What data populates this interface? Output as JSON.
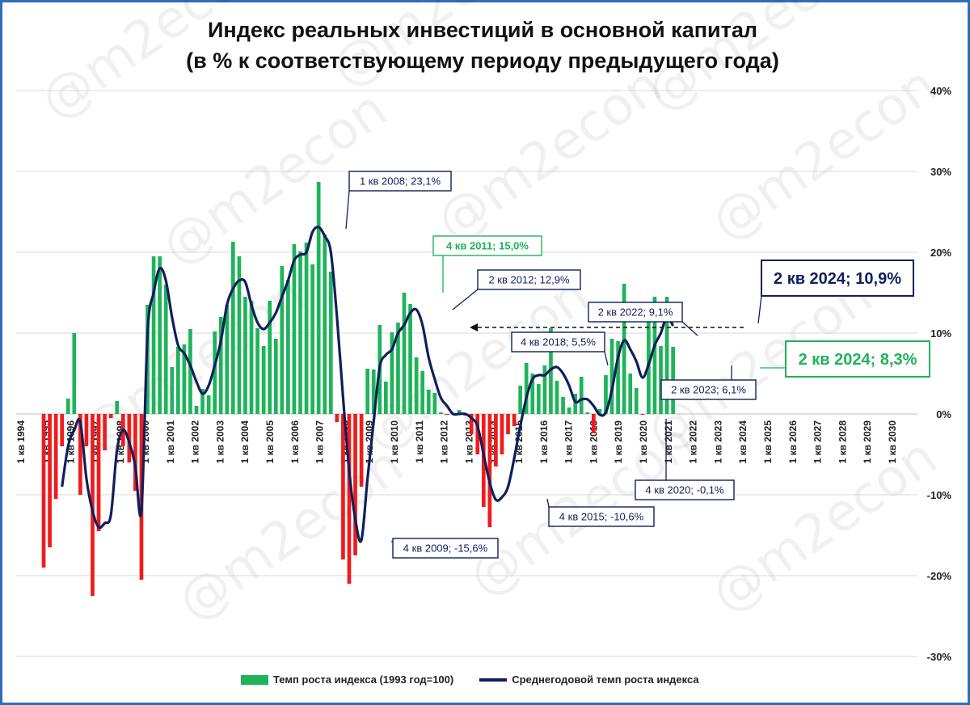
{
  "title_line1": "Индекс реальных инвестиций в основной капитал",
  "title_line2": "(в % к соответствующему периоду предыдущего года)",
  "watermark": "@m2econ",
  "colors": {
    "bar_positive": "#1fb35a",
    "bar_negative": "#ee1c1c",
    "line": "#0f1f5c",
    "grid": "#d9d9d9",
    "frame": "#2f6fb7"
  },
  "chart_data": {
    "type": "bar+line",
    "x_tick_labels": [
      "1 кв 1994",
      "1 кв 1995",
      "1 кв 1996",
      "1 кв 1997",
      "1 кв 1998",
      "1 кв 2000",
      "1 кв 2001",
      "1 кв 2002",
      "1 кв 2003",
      "1 кв 2004",
      "1 кв 2005",
      "1 кв 2006",
      "1 кв 2007",
      "1 кв 2008",
      "1 кв 2009",
      "1 кв 2010",
      "1 кв 2011",
      "1 кв 2012",
      "1 кв 2013",
      "1 кв 2014",
      "1 кв 2015",
      "1 кв 2016",
      "1 кв 2017",
      "1 кв 2018",
      "1 кв 2019",
      "1 кв 2020",
      "1 кв 2021",
      "1 кв 2022",
      "1 кв 2023",
      "1 кв 2024",
      "1 кв 2025",
      "1 кв 2026",
      "1 кв 2027",
      "1 кв 2028",
      "1 кв 2029",
      "1 кв 2030"
    ],
    "y_ticks": [
      "-30%",
      "-20%",
      "-10%",
      "0%",
      "10%",
      "20%",
      "30%",
      "40%"
    ],
    "ylim": [
      -30,
      40
    ],
    "series": [
      {
        "name": "Темп роста индекса (1993 год=100)",
        "type": "bar",
        "values": [
          null,
          null,
          null,
          null,
          -19.0,
          -16.5,
          -10.5,
          -4.0,
          1.9,
          10.0,
          -10.0,
          -4.0,
          -22.5,
          -14.5,
          -4.5,
          -0.5,
          1.6,
          -4.0,
          -6.0,
          -9.5,
          -20.5,
          13.5,
          19.5,
          19.5,
          16.0,
          5.8,
          8.3,
          8.6,
          10.5,
          1.0,
          3.1,
          2.3,
          10.2,
          12.0,
          13.5,
          21.3,
          19.5,
          14.5,
          14.0,
          10.6,
          8.4,
          14.0,
          9.3,
          18.3,
          16.6,
          21.0,
          20.1,
          21.2,
          18.5,
          28.7,
          22.2,
          17.6,
          -1.0,
          -18.0,
          -21.0,
          -17.5,
          -9.0,
          5.6,
          5.5,
          11.0,
          4.0,
          10.1,
          11.3,
          15.0,
          13.6,
          7.0,
          5.3,
          3.0,
          2.6,
          0.2,
          -0.1,
          0.0,
          0.5,
          -0.2,
          -2.5,
          -5.0,
          -11.5,
          -14.0,
          -6.5,
          -5.0,
          -2.5,
          -1.5,
          3.5,
          6.3,
          5.0,
          3.7,
          6.0,
          10.6,
          4.1,
          2.1,
          0.8,
          2.5,
          4.6,
          0.2,
          -2.4,
          0.6,
          4.8,
          9.3,
          9.0,
          16.1,
          5.0,
          3.2,
          -0.1,
          13.4,
          14.5,
          8.4,
          14.5,
          8.3
        ],
        "color_positive": "#1fb35a",
        "color_negative": "#ee1c1c"
      },
      {
        "name": "Среднегодовой темп роста индекса",
        "type": "line",
        "values": [
          null,
          null,
          null,
          null,
          null,
          null,
          null,
          -9.0,
          -4.0,
          -2.0,
          -1.0,
          -8.0,
          -12.0,
          -14.0,
          -13.5,
          -12.5,
          -4.5,
          -2.0,
          -3.5,
          -6.5,
          -12.0,
          10.0,
          15.0,
          18.0,
          16.5,
          12.0,
          8.5,
          7.5,
          6.0,
          4.0,
          2.5,
          3.5,
          6.0,
          9.0,
          13.5,
          15.5,
          16.5,
          16.3,
          13.5,
          11.3,
          10.5,
          11.3,
          12.5,
          14.5,
          16.5,
          19.0,
          19.7,
          20.0,
          22.5,
          23.1,
          22.0,
          20.0,
          12.0,
          2.0,
          -7.0,
          -13.0,
          -15.6,
          -8.0,
          -1.0,
          5.8,
          7.3,
          8.0,
          10.0,
          11.0,
          12.5,
          12.9,
          11.0,
          7.0,
          4.3,
          2.0,
          1.0,
          0.0,
          0.0,
          0.0,
          -0.5,
          -1.5,
          -5.0,
          -8.5,
          -10.6,
          -10.3,
          -9.0,
          -5.5,
          -1.5,
          2.0,
          4.3,
          4.8,
          4.8,
          5.5,
          5.8,
          5.0,
          3.5,
          1.5,
          1.8,
          1.8,
          1.0,
          -0.1,
          0.2,
          3.0,
          7.0,
          9.1,
          8.0,
          6.5,
          4.5,
          6.1,
          8.5,
          10.0,
          12.0,
          10.9
        ],
        "color": "#0f1f5c"
      }
    ],
    "annotations": [
      {
        "text": "1 кв 2008; 23,1%",
        "color": "#0f1f5c"
      },
      {
        "text": "4 кв 2011; 15,0%",
        "color": "#1fb35a"
      },
      {
        "text": "2 кв 2012; 12,9%",
        "color": "#0f1f5c"
      },
      {
        "text": "4 кв 2009; -15,6%",
        "color": "#0f1f5c"
      },
      {
        "text": "4 кв 2015; -10,6%",
        "color": "#0f1f5c"
      },
      {
        "text": "4 кв 2018; 5,5%",
        "color": "#0f1f5c"
      },
      {
        "text": "2 кв 2022; 9,1%",
        "color": "#0f1f5c"
      },
      {
        "text": "2 кв 2023; 6,1%",
        "color": "#0f1f5c"
      },
      {
        "text": "4 кв 2020; -0,1%",
        "color": "#0f1f5c"
      },
      {
        "text": "2 кв 2024; 10,9%",
        "color": "#0f1f5c"
      },
      {
        "text": "2 кв 2024; 8,3%",
        "color": "#1fb35a"
      }
    ],
    "legend": [
      "Темп роста индекса (1993 год=100)",
      "Среднегодовой темп роста индекса"
    ],
    "legend_position": "bottom",
    "grid": true
  }
}
